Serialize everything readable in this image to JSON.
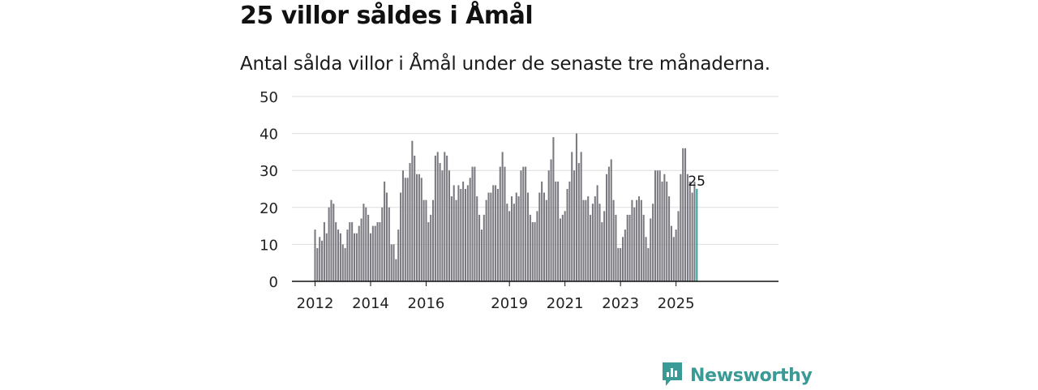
{
  "title": "25 villor såldes i Åmål",
  "subtitle": "Antal sålda villor i Åmål under de senaste tre månaderna.",
  "brand": {
    "name": "Newsworthy"
  },
  "colors": {
    "bar": "#7a7980",
    "highlight": "#2aa6a2",
    "grid": "#dddddd",
    "axis": "#111111",
    "brand": "#3a9a96"
  },
  "chart_data": {
    "type": "bar",
    "title": "Antal sålda villor i Åmål",
    "xlabel": "",
    "ylabel": "",
    "ylim": [
      0,
      50
    ],
    "yticks": [
      0,
      10,
      20,
      30,
      40,
      50
    ],
    "x_start": "2012-01",
    "xticks": [
      {
        "index": 0,
        "label": "2012"
      },
      {
        "index": 24,
        "label": "2014"
      },
      {
        "index": 48,
        "label": "2016"
      },
      {
        "index": 84,
        "label": "2019"
      },
      {
        "index": 108,
        "label": "2021"
      },
      {
        "index": 132,
        "label": "2023"
      },
      {
        "index": 156,
        "label": "2025"
      }
    ],
    "values": [
      14,
      9,
      12,
      11,
      16,
      13,
      20,
      22,
      21,
      16,
      14,
      13,
      10,
      9,
      14,
      16,
      16,
      13,
      13,
      15,
      17,
      21,
      20,
      18,
      13,
      15,
      15,
      16,
      16,
      20,
      27,
      24,
      20,
      10,
      10,
      6,
      14,
      24,
      30,
      28,
      28,
      32,
      38,
      34,
      29,
      29,
      28,
      22,
      22,
      16,
      18,
      22,
      34,
      35,
      32,
      30,
      35,
      34,
      30,
      23,
      26,
      22,
      26,
      25,
      27,
      25,
      26,
      28,
      31,
      31,
      23,
      18,
      14,
      18,
      22,
      24,
      24,
      26,
      26,
      25,
      31,
      35,
      31,
      21,
      19,
      23,
      21,
      24,
      23,
      30,
      31,
      31,
      24,
      18,
      16,
      16,
      19,
      24,
      27,
      24,
      22,
      30,
      33,
      39,
      27,
      27,
      17,
      18,
      19,
      25,
      27,
      35,
      30,
      40,
      32,
      35,
      22,
      22,
      23,
      18,
      21,
      23,
      26,
      21,
      16,
      19,
      29,
      31,
      33,
      22,
      18,
      9,
      9,
      12,
      14,
      18,
      18,
      22,
      20,
      22,
      23,
      22,
      18,
      12,
      9,
      17,
      21,
      30,
      30,
      30,
      27,
      29,
      27,
      23,
      15,
      12,
      14,
      19,
      29,
      36,
      36,
      29,
      27,
      24,
      27,
      25
    ],
    "highlight_last": true,
    "annotation": "25"
  }
}
